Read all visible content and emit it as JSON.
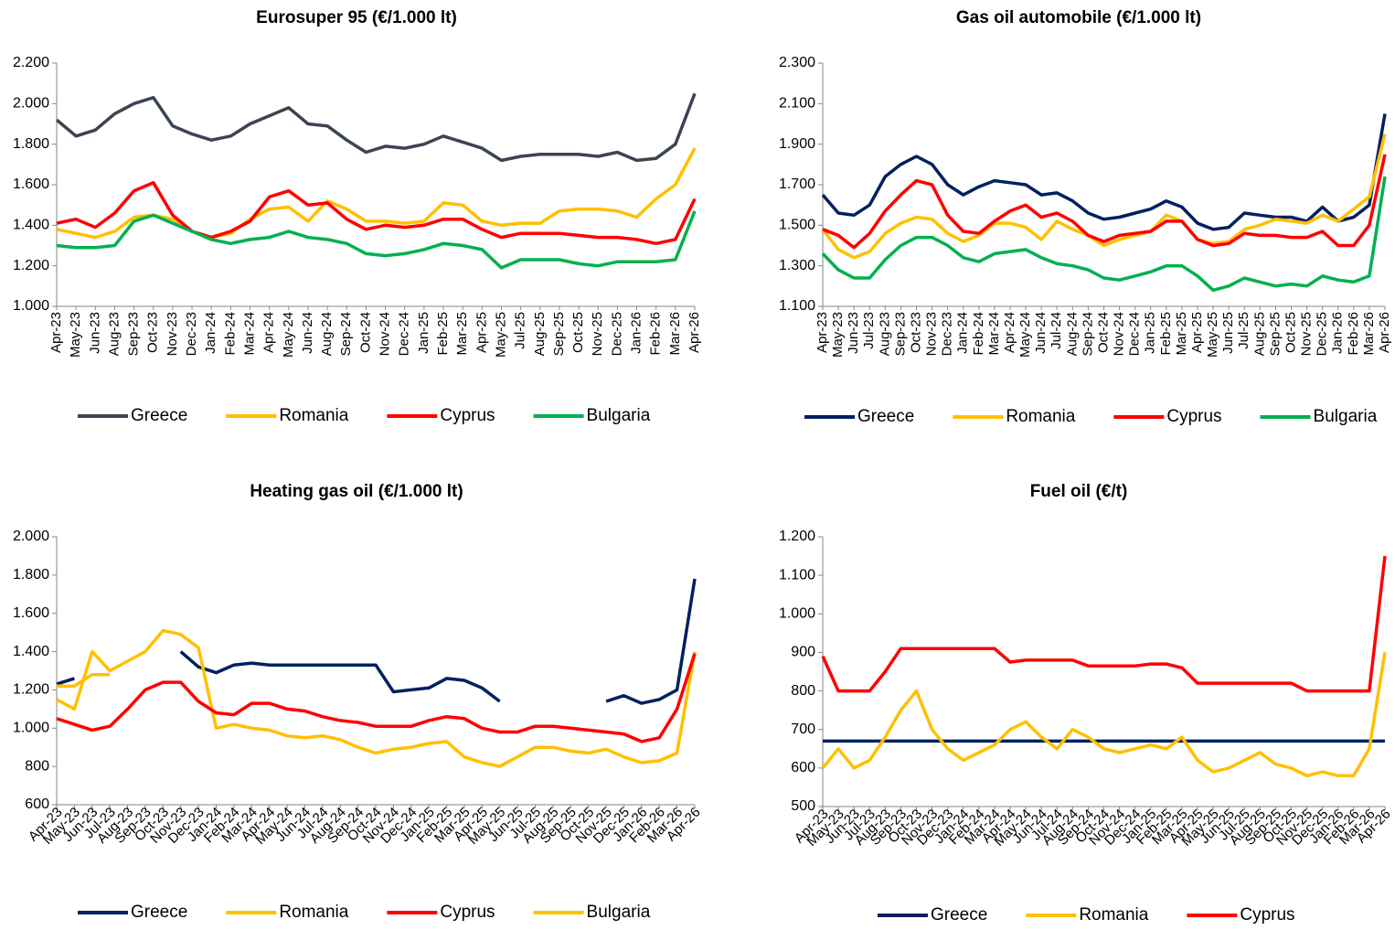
{
  "chart_data": [
    {
      "type": "line",
      "title": "Eurosuper 95 (€/1.000 lt)",
      "categories": [
        "Apr-23",
        "May-23",
        "Jun-23",
        "Aug-23",
        "Sep-23",
        "Oct-23",
        "Nov-23",
        "Dec-23",
        "Jan-24",
        "Feb-24",
        "Mar-24",
        "Apr-24",
        "May-24",
        "Jun-24",
        "Aug-24",
        "Sep-24",
        "Oct-24",
        "Nov-24",
        "Dec-24",
        "Jan-25",
        "Feb-25",
        "Mar-25",
        "Apr-25",
        "May-25",
        "Jul-25",
        "Aug-25",
        "Sep-25",
        "Oct-25",
        "Nov-25",
        "Dec-25",
        "Jan-26",
        "Feb-26",
        "Mar-26",
        "Apr-26"
      ],
      "ylim": [
        1000,
        2200
      ],
      "yticks": [
        {
          "value": 1000,
          "label": "1.000"
        },
        {
          "value": 1200,
          "label": "1.200"
        },
        {
          "value": 1400,
          "label": "1.400"
        },
        {
          "value": 1600,
          "label": "1.600"
        },
        {
          "value": 1800,
          "label": "1.800"
        },
        {
          "value": 2000,
          "label": "2.000"
        },
        {
          "value": 2200,
          "label": "2.200"
        }
      ],
      "grid": false,
      "legend": "bottom",
      "series": [
        {
          "name": "Greece",
          "color": "#3b4452",
          "values": [
            1920,
            1840,
            1870,
            1950,
            2000,
            2030,
            1890,
            1850,
            1820,
            1840,
            1900,
            1940,
            1980,
            1900,
            1890,
            1820,
            1760,
            1790,
            1780,
            1800,
            1840,
            1810,
            1780,
            1720,
            1740,
            1750,
            1750,
            1750,
            1740,
            1760,
            1720,
            1730,
            1800,
            2050
          ]
        },
        {
          "name": "Romania",
          "color": "#ffc000",
          "values": [
            1380,
            1360,
            1340,
            1370,
            1440,
            1450,
            1430,
            1370,
            1340,
            1360,
            1430,
            1480,
            1490,
            1420,
            1520,
            1480,
            1420,
            1420,
            1410,
            1420,
            1510,
            1500,
            1420,
            1400,
            1410,
            1410,
            1470,
            1480,
            1480,
            1470,
            1440,
            1530,
            1600,
            1780
          ]
        },
        {
          "name": "Cyprus",
          "color": "#ff0000",
          "values": [
            1410,
            1430,
            1390,
            1460,
            1570,
            1610,
            1450,
            1370,
            1340,
            1370,
            1420,
            1540,
            1570,
            1500,
            1510,
            1430,
            1380,
            1400,
            1390,
            1400,
            1430,
            1430,
            1380,
            1340,
            1360,
            1360,
            1360,
            1350,
            1340,
            1340,
            1330,
            1310,
            1330,
            1530
          ]
        },
        {
          "name": "Bulgaria",
          "color": "#00b050",
          "values": [
            1300,
            1290,
            1290,
            1300,
            1420,
            1450,
            1410,
            1370,
            1330,
            1310,
            1330,
            1340,
            1370,
            1340,
            1330,
            1310,
            1260,
            1250,
            1260,
            1280,
            1310,
            1300,
            1280,
            1190,
            1230,
            1230,
            1230,
            1210,
            1200,
            1220,
            1220,
            1220,
            1230,
            1470
          ]
        }
      ]
    },
    {
      "type": "line",
      "title": "Gas oil automobile (€/1.000 lt)",
      "categories": [
        "Apr-23",
        "May-23",
        "Jun-23",
        "Jul-23",
        "Aug-23",
        "Sep-23",
        "Oct-23",
        "Nov-23",
        "Dec-23",
        "Jan-24",
        "Feb-24",
        "Mar-24",
        "Apr-24",
        "May-24",
        "Jun-24",
        "Jul-24",
        "Aug-24",
        "Sep-24",
        "Oct-24",
        "Nov-24",
        "Dec-24",
        "Jan-25",
        "Feb-25",
        "Mar-25",
        "Apr-25",
        "May-25",
        "Jun-25",
        "Jul-25",
        "Aug-25",
        "Sep-25",
        "Oct-25",
        "Nov-25",
        "Dec-25",
        "Jan-26",
        "Feb-26",
        "Mar-26",
        "Apr-26"
      ],
      "ylim": [
        1100,
        2300
      ],
      "yticks": [
        {
          "value": 1100,
          "label": "1.100"
        },
        {
          "value": 1300,
          "label": "1.300"
        },
        {
          "value": 1500,
          "label": "1.500"
        },
        {
          "value": 1700,
          "label": "1.700"
        },
        {
          "value": 1900,
          "label": "1.900"
        },
        {
          "value": 2100,
          "label": "2.100"
        },
        {
          "value": 2300,
          "label": "2.300"
        }
      ],
      "grid": false,
      "legend": "bottom",
      "series": [
        {
          "name": "Greece",
          "color": "#002060",
          "values": [
            1650,
            1560,
            1550,
            1600,
            1740,
            1800,
            1840,
            1800,
            1700,
            1650,
            1690,
            1720,
            1710,
            1700,
            1650,
            1660,
            1620,
            1560,
            1530,
            1540,
            1560,
            1580,
            1620,
            1590,
            1510,
            1480,
            1490,
            1560,
            1550,
            1540,
            1540,
            1520,
            1590,
            1520,
            1540,
            1600,
            2050
          ]
        },
        {
          "name": "Romania",
          "color": "#ffc000",
          "values": [
            1480,
            1380,
            1340,
            1370,
            1460,
            1510,
            1540,
            1530,
            1460,
            1420,
            1450,
            1510,
            1510,
            1490,
            1430,
            1520,
            1480,
            1450,
            1400,
            1430,
            1450,
            1470,
            1550,
            1520,
            1430,
            1410,
            1420,
            1480,
            1500,
            1530,
            1520,
            1510,
            1550,
            1520,
            1580,
            1640,
            1950
          ]
        },
        {
          "name": "Cyprus",
          "color": "#ff0000",
          "values": [
            1480,
            1450,
            1390,
            1460,
            1570,
            1650,
            1720,
            1700,
            1550,
            1470,
            1460,
            1520,
            1570,
            1600,
            1540,
            1560,
            1520,
            1450,
            1420,
            1450,
            1460,
            1470,
            1520,
            1520,
            1430,
            1400,
            1410,
            1460,
            1450,
            1450,
            1440,
            1440,
            1470,
            1400,
            1400,
            1500,
            1850
          ]
        },
        {
          "name": "Bulgaria",
          "color": "#00b050",
          "values": [
            1360,
            1280,
            1240,
            1240,
            1330,
            1400,
            1440,
            1440,
            1400,
            1340,
            1320,
            1360,
            1370,
            1380,
            1340,
            1310,
            1300,
            1280,
            1240,
            1230,
            1250,
            1270,
            1300,
            1300,
            1250,
            1180,
            1200,
            1240,
            1220,
            1200,
            1210,
            1200,
            1250,
            1230,
            1220,
            1250,
            1740
          ]
        }
      ]
    },
    {
      "type": "line",
      "title": "Heating gas oil (€/1.000 lt)",
      "categories": [
        "Apr-23",
        "May-23",
        "Jun-23",
        "Jul-23",
        "Aug-23",
        "Sep-23",
        "Oct-23",
        "Nov-23",
        "Dec-23",
        "Jan-24",
        "Feb-24",
        "Mar-24",
        "Apr-24",
        "May-24",
        "Jun-24",
        "Jul-24",
        "Aug-24",
        "Sep-24",
        "Oct-24",
        "Nov-24",
        "Dec-24",
        "Jan-25",
        "Feb-25",
        "Mar-25",
        "Apr-25",
        "May-25",
        "Jun-25",
        "Jul-25",
        "Aug-25",
        "Sep-25",
        "Oct-25",
        "Nov-25",
        "Dec-25",
        "Jan-26",
        "Feb-26",
        "Mar-26",
        "Apr-26"
      ],
      "ylim": [
        600,
        2000
      ],
      "yticks": [
        600,
        800,
        {
          "value": 1000,
          "label": "1.000"
        },
        {
          "value": 1200,
          "label": "1.200"
        },
        {
          "value": 1400,
          "label": "1.400"
        },
        {
          "value": 1600,
          "label": "1.600"
        },
        {
          "value": 1800,
          "label": "1.800"
        },
        {
          "value": 2000,
          "label": "2.000"
        }
      ],
      "grid": false,
      "legend": "bottom",
      "series": [
        {
          "name": "Greece",
          "color": "#002060",
          "values": [
            1230,
            1260,
            null,
            null,
            null,
            null,
            null,
            1400,
            1320,
            1290,
            1330,
            1340,
            1330,
            1330,
            1330,
            1330,
            1330,
            1330,
            1330,
            1190,
            1200,
            1210,
            1260,
            1250,
            1210,
            1140,
            null,
            null,
            null,
            null,
            null,
            1140,
            1170,
            1130,
            1150,
            1200,
            1780
          ]
        },
        {
          "name": "Romania",
          "color": "#ffc000",
          "values": [
            1150,
            1100,
            1400,
            1300,
            1350,
            1400,
            1510,
            1490,
            1420,
            1000,
            1020,
            1000,
            990,
            960,
            950,
            960,
            940,
            900,
            870,
            890,
            900,
            920,
            930,
            850,
            820,
            800,
            850,
            900,
            900,
            880,
            870,
            890,
            850,
            820,
            830,
            870,
            1400
          ]
        },
        {
          "name": "Cyprus",
          "color": "#ff0000",
          "values": [
            1050,
            1020,
            990,
            1010,
            1100,
            1200,
            1240,
            1240,
            1140,
            1080,
            1070,
            1130,
            1130,
            1100,
            1090,
            1060,
            1040,
            1030,
            1010,
            1010,
            1010,
            1040,
            1060,
            1050,
            1000,
            980,
            980,
            1010,
            1010,
            1000,
            990,
            980,
            970,
            930,
            950,
            1100,
            1390
          ]
        },
        {
          "name": "Bulgaria",
          "color": "#ffc000",
          "values": [
            1220,
            1220,
            1280,
            1280,
            null,
            null,
            null,
            null,
            null,
            null,
            null,
            null,
            null,
            null,
            null,
            null,
            null,
            null,
            null,
            null,
            null,
            null,
            null,
            null,
            null,
            null,
            null,
            null,
            null,
            null,
            null,
            null,
            null,
            null,
            null,
            null,
            null
          ]
        }
      ]
    },
    {
      "type": "line",
      "title": "Fuel oil (€/t)",
      "categories": [
        "Apr-23",
        "May-23",
        "Jun-23",
        "Jul-23",
        "Aug-23",
        "Sep-23",
        "Oct-23",
        "Nov-23",
        "Dec-23",
        "Jan-24",
        "Feb-24",
        "Mar-24",
        "Apr-24",
        "May-24",
        "Jun-24",
        "Jul-24",
        "Aug-24",
        "Sep-24",
        "Oct-24",
        "Nov-24",
        "Dec-24",
        "Jan-25",
        "Feb-25",
        "Mar-25",
        "Apr-25",
        "May-25",
        "Jun-25",
        "Jul-25",
        "Aug-25",
        "Sep-25",
        "Oct-25",
        "Nov-25",
        "Dec-25",
        "Jan-26",
        "Feb-26",
        "Mar-26",
        "Apr-26"
      ],
      "ylim": [
        500,
        1200
      ],
      "yticks": [
        500,
        600,
        700,
        800,
        900,
        {
          "value": 1000,
          "label": "1.000"
        },
        {
          "value": 1100,
          "label": "1.100"
        },
        {
          "value": 1200,
          "label": "1.200"
        }
      ],
      "grid": false,
      "legend": "bottom",
      "series": [
        {
          "name": "Greece",
          "color": "#002060",
          "values": [
            670,
            670,
            670,
            670,
            670,
            670,
            670,
            670,
            670,
            670,
            670,
            670,
            670,
            670,
            670,
            670,
            670,
            670,
            670,
            670,
            670,
            670,
            670,
            670,
            670,
            670,
            670,
            670,
            670,
            670,
            670,
            670,
            670,
            670,
            670,
            670,
            670
          ]
        },
        {
          "name": "Romania",
          "color": "#ffc000",
          "values": [
            600,
            650,
            600,
            620,
            680,
            750,
            800,
            700,
            650,
            620,
            640,
            660,
            700,
            720,
            680,
            650,
            700,
            680,
            650,
            640,
            650,
            660,
            650,
            680,
            620,
            590,
            600,
            620,
            640,
            610,
            600,
            580,
            590,
            580,
            580,
            650,
            900
          ]
        },
        {
          "name": "Cyprus",
          "color": "#ff0000",
          "values": [
            890,
            800,
            800,
            800,
            850,
            910,
            910,
            910,
            910,
            910,
            910,
            910,
            875,
            880,
            880,
            880,
            880,
            865,
            865,
            865,
            865,
            870,
            870,
            860,
            820,
            820,
            820,
            820,
            820,
            820,
            820,
            800,
            800,
            800,
            800,
            800,
            1150
          ]
        }
      ]
    }
  ]
}
